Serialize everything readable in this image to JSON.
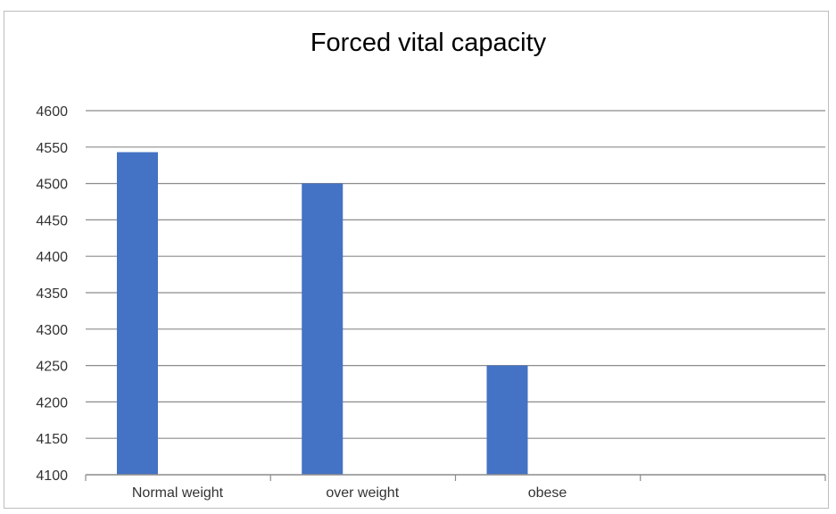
{
  "chart_data": {
    "type": "bar",
    "title": "Forced vital capacity",
    "xlabel": "",
    "ylabel": "",
    "categories": [
      "Normal weight",
      "over weight",
      "obese",
      ""
    ],
    "series": [
      {
        "values": [
          4543,
          4500,
          4250,
          null
        ]
      }
    ],
    "ylim": [
      4100,
      4600
    ],
    "yticks": [
      4100,
      4150,
      4200,
      4250,
      4300,
      4350,
      4400,
      4450,
      4500,
      4550,
      4600
    ],
    "grid": true,
    "legend": "none",
    "bar_color": "#4472C4",
    "gridline_color": "#8c8c8c"
  }
}
